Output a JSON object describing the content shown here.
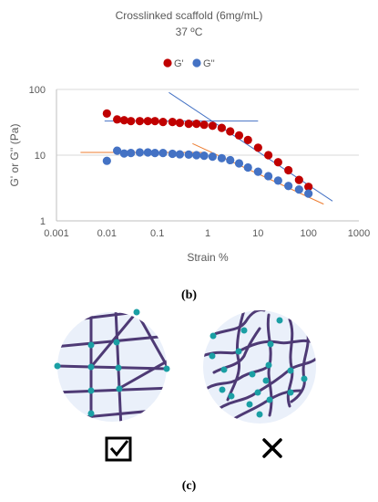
{
  "figure": {
    "title": "Crosslinked scaffold (6mg/mL)",
    "subtitle": "37 ºC",
    "panel_b_label": "(b)",
    "panel_c_label": "(c)",
    "check_symbol": "☑",
    "cross_symbol": "✕"
  },
  "chart_data": {
    "type": "scatter",
    "title": "Crosslinked scaffold (6mg/mL)",
    "subtitle": "37 ºC",
    "xlabel": "Strain %",
    "ylabel": "G' or G'' (Pa)",
    "xscale": "log",
    "yscale": "log",
    "xlim": [
      0.001,
      1000
    ],
    "ylim": [
      1,
      100
    ],
    "xticks": [
      "0.001",
      "0.01",
      "0.1",
      "1",
      "10",
      "100",
      "1000"
    ],
    "yticks": [
      "1",
      "10",
      "100"
    ],
    "grid": "horizontal",
    "legend_position": "top",
    "colors": {
      "G_prime": "#c00000",
      "G_double_prime": "#4472c4",
      "blue_line": "#4472c4",
      "orange_line": "#ed7d31"
    },
    "series": [
      {
        "name": "G'",
        "x": [
          0.01,
          0.016,
          0.022,
          0.03,
          0.045,
          0.065,
          0.09,
          0.13,
          0.2,
          0.28,
          0.42,
          0.6,
          0.85,
          1.25,
          1.9,
          2.8,
          4.2,
          6.3,
          10,
          16,
          25,
          40,
          65,
          100
        ],
        "y": [
          43,
          35,
          34,
          33,
          33,
          33,
          33,
          32,
          32,
          31,
          30,
          30,
          29,
          28,
          26,
          23,
          20,
          17,
          13,
          10,
          7.8,
          5.9,
          4.2,
          3.3
        ]
      },
      {
        "name": "G''",
        "x": [
          0.01,
          0.016,
          0.022,
          0.03,
          0.045,
          0.065,
          0.09,
          0.13,
          0.2,
          0.28,
          0.42,
          0.6,
          0.85,
          1.25,
          1.9,
          2.8,
          4.2,
          6.3,
          10,
          16,
          25,
          40,
          65,
          100
        ],
        "y": [
          8.2,
          11.7,
          10.6,
          10.8,
          11,
          11,
          10.8,
          10.8,
          10.5,
          10.3,
          10.2,
          10,
          9.8,
          9.5,
          9,
          8.4,
          7.5,
          6.5,
          5.6,
          4.8,
          4.1,
          3.4,
          3,
          2.6
        ]
      }
    ],
    "fit_lines": [
      {
        "color": "blue",
        "x": [
          0.009,
          10
        ],
        "y": [
          33,
          33
        ]
      },
      {
        "color": "blue",
        "x": [
          0.17,
          300
        ],
        "y": [
          90,
          2
        ]
      },
      {
        "color": "orange",
        "x": [
          0.003,
          0.9
        ],
        "y": [
          11,
          11
        ]
      },
      {
        "color": "orange",
        "x": [
          0.5,
          200
        ],
        "y": [
          15,
          1.8
        ]
      }
    ]
  },
  "networks": {
    "fill": "#eaf0fa",
    "fiber": "#4e3a75",
    "node": "#1a9fa4"
  }
}
